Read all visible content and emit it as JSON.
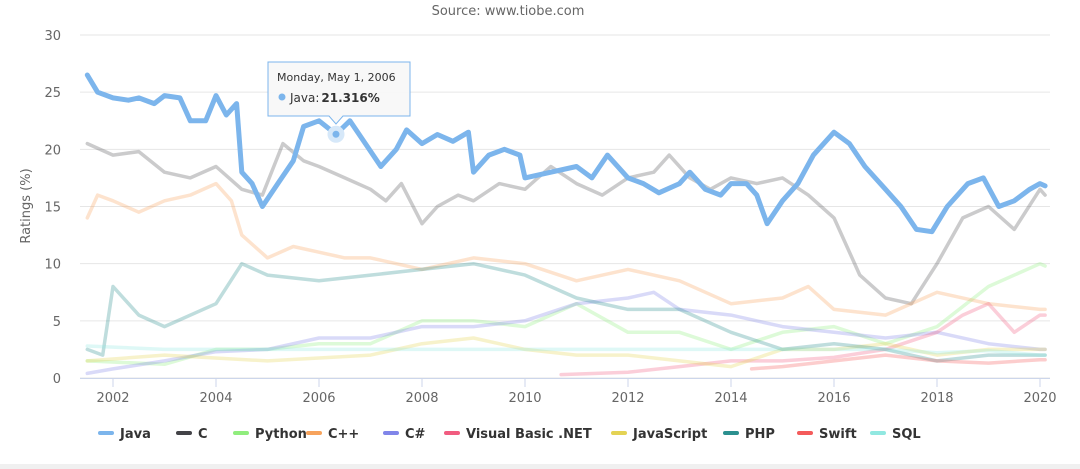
{
  "chart_data": {
    "type": "line",
    "subtitle": "Source: www.tiobe.com",
    "ylabel": "Ratings (%)",
    "xlabel": "",
    "ylim": [
      0,
      30
    ],
    "yticks": [
      0,
      5,
      10,
      15,
      20,
      25,
      30
    ],
    "xlim": [
      2001.4,
      2020.2
    ],
    "xticks": [
      2002,
      2004,
      2006,
      2008,
      2010,
      2012,
      2014,
      2016,
      2018,
      2020
    ],
    "grid": true,
    "legend_position": "bottom",
    "highlighted_series": "Java",
    "tooltip": {
      "date": "Monday, May 1, 2006",
      "series": "Java",
      "label": "Java: ",
      "value": "21.316%",
      "x": 2006.33,
      "y": 21.316
    },
    "series": [
      {
        "name": "Java",
        "color": "#7cb5ec",
        "x": [
          2001.5,
          2001.7,
          2002,
          2002.3,
          2002.5,
          2002.8,
          2003,
          2003.3,
          2003.5,
          2003.8,
          2004,
          2004.2,
          2004.4,
          2004.5,
          2004.7,
          2004.9,
          2005.2,
          2005.5,
          2005.7,
          2006,
          2006.33,
          2006.6,
          2006.9,
          2007.2,
          2007.5,
          2007.7,
          2008,
          2008.3,
          2008.6,
          2008.9,
          2009,
          2009.3,
          2009.6,
          2009.9,
          2010,
          2010.5,
          2011,
          2011.3,
          2011.6,
          2012,
          2012.3,
          2012.6,
          2013,
          2013.2,
          2013.5,
          2013.8,
          2014,
          2014.3,
          2014.5,
          2014.7,
          2015,
          2015.3,
          2015.6,
          2016,
          2016.3,
          2016.6,
          2017,
          2017.3,
          2017.6,
          2017.9,
          2018.2,
          2018.6,
          2018.9,
          2019.2,
          2019.5,
          2019.8,
          2020,
          2020.1
        ],
        "y": [
          26.5,
          25,
          24.5,
          24.3,
          24.5,
          24,
          24.7,
          24.5,
          22.5,
          22.5,
          24.7,
          23,
          24,
          18,
          17,
          15,
          17,
          19,
          22,
          22.5,
          21.316,
          22.5,
          20.5,
          18.5,
          20,
          21.7,
          20.5,
          21.3,
          20.7,
          21.5,
          18,
          19.5,
          20,
          19.5,
          17.5,
          18,
          18.5,
          17.5,
          19.5,
          17.5,
          17,
          16.2,
          17,
          18,
          16.5,
          16,
          17,
          17,
          16,
          13.5,
          15.5,
          17,
          19.5,
          21.5,
          20.5,
          18.5,
          16.5,
          15,
          13,
          12.8,
          15,
          17,
          17.5,
          15,
          15.5,
          16.5,
          17,
          16.8
        ]
      },
      {
        "name": "C",
        "color": "#434348",
        "x": [
          2001.5,
          2002,
          2002.5,
          2003,
          2003.5,
          2004,
          2004.5,
          2004.9,
          2005.3,
          2005.7,
          2006,
          2006.5,
          2007,
          2007.3,
          2007.6,
          2008,
          2008.3,
          2008.7,
          2009,
          2009.5,
          2010,
          2010.5,
          2011,
          2011.5,
          2012,
          2012.5,
          2012.8,
          2013.2,
          2013.6,
          2014,
          2014.5,
          2015,
          2015.5,
          2016,
          2016.5,
          2017,
          2017.5,
          2018,
          2018.5,
          2019,
          2019.5,
          2020,
          2020.1
        ],
        "y": [
          20.5,
          19.5,
          19.8,
          18,
          17.5,
          18.5,
          16.5,
          16,
          20.5,
          19,
          18.5,
          17.5,
          16.5,
          15.5,
          17,
          13.5,
          15,
          16,
          15.5,
          17,
          16.5,
          18.5,
          17,
          16,
          17.5,
          18,
          19.5,
          17.5,
          16.5,
          17.5,
          17,
          17.5,
          16,
          14,
          9,
          7,
          6.5,
          10,
          14,
          15,
          13,
          16.5,
          16
        ]
      },
      {
        "name": "Python",
        "color": "#90ed7d",
        "x": [
          2001.5,
          2003,
          2004,
          2005,
          2006,
          2007,
          2008,
          2009,
          2010,
          2011,
          2012,
          2013,
          2014,
          2015,
          2016,
          2017,
          2018,
          2019,
          2020,
          2020.1
        ],
        "y": [
          1.5,
          1.2,
          2.5,
          2.5,
          3,
          3,
          5,
          5,
          4.5,
          6.5,
          4,
          4,
          2.5,
          4,
          4.5,
          3,
          4.5,
          8,
          10,
          9.8
        ]
      },
      {
        "name": "C++",
        "color": "#f7a35c",
        "x": [
          2001.5,
          2001.7,
          2002,
          2002.5,
          2003,
          2003.5,
          2004,
          2004.3,
          2004.5,
          2005,
          2005.5,
          2006,
          2006.5,
          2007,
          2008,
          2009,
          2010,
          2011,
          2012,
          2013,
          2014,
          2015,
          2015.5,
          2016,
          2017,
          2018,
          2019,
          2020,
          2020.1
        ],
        "y": [
          14,
          16,
          15.5,
          14.5,
          15.5,
          16,
          17,
          15.5,
          12.5,
          10.5,
          11.5,
          11,
          10.5,
          10.5,
          9.5,
          10.5,
          10,
          8.5,
          9.5,
          8.5,
          6.5,
          7,
          8,
          6,
          5.5,
          7.5,
          6.5,
          6,
          6
        ]
      },
      {
        "name": "C#",
        "color": "#8085e9",
        "x": [
          2001.5,
          2002,
          2003,
          2004,
          2005,
          2006,
          2007,
          2008,
          2009,
          2010,
          2011,
          2012,
          2012.5,
          2013,
          2014,
          2015,
          2016,
          2017,
          2018,
          2019,
          2020,
          2020.1
        ],
        "y": [
          0.4,
          0.8,
          1.5,
          2.3,
          2.5,
          3.5,
          3.5,
          4.5,
          4.5,
          5,
          6.5,
          7,
          7.5,
          6,
          5.5,
          4.5,
          4,
          3.5,
          4,
          3,
          2.5,
          2.5
        ]
      },
      {
        "name": "Visual Basic .NET",
        "color": "#f15c80",
        "x": [
          2010.7,
          2012,
          2013,
          2014,
          2015,
          2016,
          2017,
          2018,
          2018.5,
          2019,
          2019.5,
          2020,
          2020.1
        ],
        "y": [
          0.3,
          0.5,
          1,
          1.5,
          1.5,
          1.8,
          2.5,
          4,
          5.5,
          6.5,
          4,
          5.5,
          5.5
        ]
      },
      {
        "name": "JavaScript",
        "color": "#e4d354",
        "x": [
          2001.5,
          2003,
          2005,
          2007,
          2008,
          2009,
          2010,
          2011,
          2012,
          2013,
          2014,
          2015,
          2016,
          2017,
          2018,
          2019,
          2020,
          2020.1
        ],
        "y": [
          1.5,
          2,
          1.5,
          2,
          3,
          3.5,
          2.5,
          2,
          2,
          1.5,
          1,
          2.5,
          2.5,
          3,
          2,
          2.5,
          2.5,
          2.5
        ]
      },
      {
        "name": "PHP",
        "color": "#2b908f",
        "x": [
          2001.5,
          2001.8,
          2002,
          2002.5,
          2003,
          2004,
          2004.5,
          2005,
          2006,
          2007,
          2008,
          2009,
          2010,
          2011,
          2012,
          2013,
          2014,
          2015,
          2016,
          2017,
          2018,
          2019,
          2020,
          2020.1
        ],
        "y": [
          2.5,
          2,
          8,
          5.5,
          4.5,
          6.5,
          10,
          9,
          8.5,
          9,
          9.5,
          10,
          9,
          7,
          6,
          6,
          4,
          2.5,
          3,
          2.5,
          1.5,
          2,
          2,
          2
        ]
      },
      {
        "name": "Swift",
        "color": "#f45b5b",
        "x": [
          2014.4,
          2015,
          2016,
          2017,
          2018,
          2019,
          2020,
          2020.1
        ],
        "y": [
          0.8,
          1,
          1.5,
          2,
          1.5,
          1.3,
          1.6,
          1.6
        ]
      },
      {
        "name": "SQL",
        "color": "#91e8e1",
        "x": [
          2001.5,
          2003,
          2005,
          2007,
          2009,
          2011,
          2013,
          2015,
          2017,
          2018,
          2019,
          2020,
          2020.1
        ],
        "y": [
          2.8,
          2.5,
          2.5,
          2.5,
          2.5,
          2.5,
          2.5,
          2.5,
          2.5,
          2.2,
          2.4,
          2,
          2
        ]
      }
    ]
  }
}
